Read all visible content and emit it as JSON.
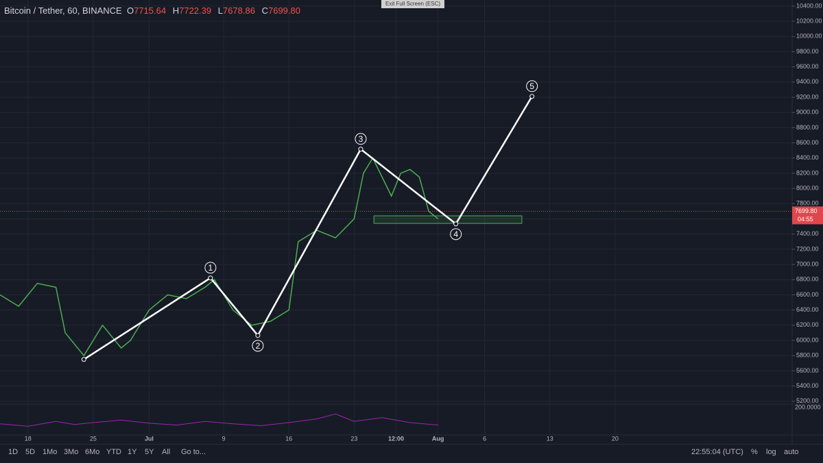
{
  "header": {
    "symbol": "Bitcoin / Tether, 60, BINANCE",
    "o_label": "O",
    "open": "7715.64",
    "h_label": "H",
    "high": "7722.39",
    "l_label": "L",
    "low": "7678.86",
    "c_label": "C",
    "close": "7699.80"
  },
  "exit_button": "Exit Full Screen (ESC)",
  "toolbar": {
    "ranges": [
      "1D",
      "5D",
      "1Mo",
      "3Mo",
      "6Mo",
      "YTD",
      "1Y",
      "5Y",
      "All"
    ],
    "goto": "Go to...",
    "clock": "22:55:04 (UTC)",
    "percent": "%",
    "log": "log",
    "auto": "auto"
  },
  "chart_data": {
    "type": "line",
    "xlim": [
      "06-15",
      "09-08"
    ],
    "ylim": [
      5180,
      10480
    ],
    "grid": true,
    "xticks": [
      {
        "value": "06-18",
        "label": "18"
      },
      {
        "value": "06-25",
        "label": "25"
      },
      {
        "value": "07-01",
        "label": "Jul"
      },
      {
        "value": "07-09",
        "label": "9"
      },
      {
        "value": "07-16",
        "label": "16"
      },
      {
        "value": "07-23",
        "label": "23"
      },
      {
        "value": "07-27 12:00",
        "label": "12:00"
      },
      {
        "value": "08-01",
        "label": "Aug"
      },
      {
        "value": "08-06",
        "label": "6"
      },
      {
        "value": "08-13",
        "label": "13"
      },
      {
        "value": "08-20",
        "label": "20"
      }
    ],
    "yticks": [
      {
        "value": 5200,
        "label": "5200.00"
      },
      {
        "value": 5400,
        "label": "5400.00"
      },
      {
        "value": 5600,
        "label": "5600.00"
      },
      {
        "value": 5800,
        "label": "5800.00"
      },
      {
        "value": 6000,
        "label": "6000.00"
      },
      {
        "value": 6200,
        "label": "6200.00"
      },
      {
        "value": 6400,
        "label": "6400.00"
      },
      {
        "value": 6600,
        "label": "6600.00"
      },
      {
        "value": 6800,
        "label": "6800.00"
      },
      {
        "value": 7000,
        "label": "7000.00"
      },
      {
        "value": 7200,
        "label": "7200.00"
      },
      {
        "value": 7400,
        "label": "7400.00"
      },
      {
        "value": 7600,
        "label": "7600.00"
      },
      {
        "value": 7800,
        "label": "7800.00"
      },
      {
        "value": 8000,
        "label": "8000.00"
      },
      {
        "value": 8200,
        "label": "8200.00"
      },
      {
        "value": 8400,
        "label": "8400.00"
      },
      {
        "value": 8600,
        "label": "8600.00"
      },
      {
        "value": 8800,
        "label": "8800.00"
      },
      {
        "value": 9000,
        "label": "9000.00"
      },
      {
        "value": 9200,
        "label": "9200.00"
      },
      {
        "value": 9400,
        "label": "9400.00"
      },
      {
        "value": 9600,
        "label": "9600.00"
      },
      {
        "value": 9800,
        "label": "9800.00"
      },
      {
        "value": 10000,
        "label": "10000.00"
      },
      {
        "value": 10200,
        "label": "10200.00"
      },
      {
        "value": 10400,
        "label": "10400.00"
      }
    ],
    "series": [
      {
        "color": "#4caf50",
        "x": [
          "06-15",
          "06-17",
          "06-19",
          "06-21",
          "06-22",
          "06-24",
          "06-26",
          "06-28",
          "06-29",
          "07-01",
          "07-03",
          "07-05",
          "07-07",
          "07-08",
          "07-10",
          "07-12",
          "07-14",
          "07-16",
          "07-17",
          "07-19",
          "07-21",
          "07-23",
          "07-24",
          "07-25",
          "07-26",
          "07-27",
          "07-28",
          "07-29",
          "07-30",
          "07-31",
          "08-01"
        ],
        "values": [
          6600,
          6450,
          6750,
          6700,
          6100,
          5800,
          6200,
          5900,
          6000,
          6400,
          6600,
          6550,
          6700,
          6800,
          6400,
          6200,
          6250,
          6400,
          7300,
          7450,
          7350,
          7600,
          8200,
          8400,
          8150,
          7900,
          8200,
          8250,
          8150,
          7700,
          7600
        ]
      },
      {
        "color": "#ffffff",
        "x": [
          "06-24",
          "07-07 14:00",
          "07-12 16:00",
          "07-23 17:00",
          "08-02 22:00",
          "08-11 02:00"
        ],
        "values": [
          5750,
          6822,
          6065,
          8517,
          7534,
          9211
        ],
        "labels": [
          null,
          "1",
          "2",
          "3",
          "4",
          "5"
        ]
      }
    ],
    "zone": {
      "x": [
        "07-25 03:00",
        "08-10"
      ],
      "values": [
        7540,
        7640
      ],
      "color": "#4caf50"
    },
    "price_line": {
      "value": 7699.8,
      "label": "7699.80",
      "countdown": "04:55",
      "color": "#e0474c"
    },
    "indicator": {
      "label": "200.0000",
      "color": "#9c27b0",
      "ylim": [
        0,
        250
      ],
      "x": [
        "06-15",
        "06-18",
        "06-21",
        "06-23",
        "06-25",
        "06-28",
        "07-01",
        "07-04",
        "07-07",
        "07-10",
        "07-13",
        "07-16",
        "07-19",
        "07-21",
        "07-23",
        "07-26",
        "07-29",
        "08-01"
      ],
      "values": [
        90,
        70,
        110,
        85,
        100,
        120,
        95,
        80,
        110,
        90,
        75,
        100,
        130,
        170,
        110,
        140,
        100,
        80
      ]
    }
  }
}
